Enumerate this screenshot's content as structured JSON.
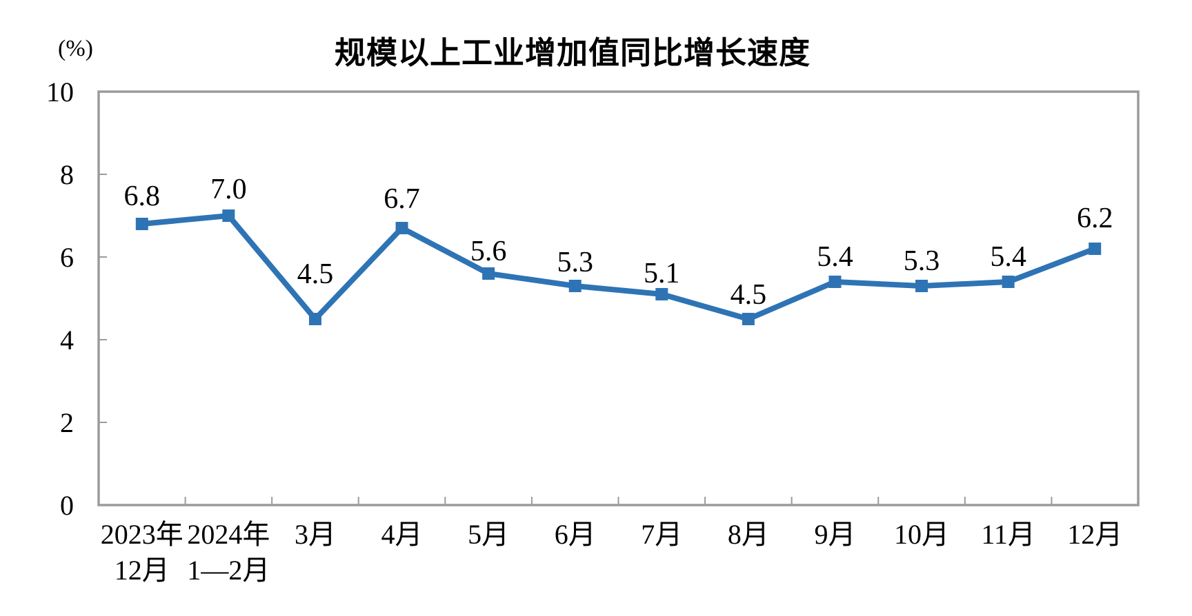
{
  "page": {
    "background_color": "#ffffff"
  },
  "chart_data": {
    "type": "line",
    "title": "规模以上工业增加值同比增长速度",
    "unit_label": "(%)",
    "categories": [
      [
        "2023年",
        "12月"
      ],
      [
        "2024年",
        "1—2月"
      ],
      [
        "3月"
      ],
      [
        "4月"
      ],
      [
        "5月"
      ],
      [
        "6月"
      ],
      [
        "7月"
      ],
      [
        "8月"
      ],
      [
        "9月"
      ],
      [
        "10月"
      ],
      [
        "11月"
      ],
      [
        "12月"
      ]
    ],
    "values": [
      6.8,
      7.0,
      4.5,
      6.7,
      5.6,
      5.3,
      5.1,
      4.5,
      5.4,
      5.3,
      5.4,
      6.2
    ],
    "data_labels": [
      "6.8",
      "7.0",
      "4.5",
      "6.7",
      "5.6",
      "5.3",
      "5.1",
      "4.5",
      "5.4",
      "5.3",
      "5.4",
      "6.2"
    ],
    "xlabel": "",
    "ylabel": "(%)",
    "ylim": [
      0,
      10
    ],
    "yticks": [
      0,
      2,
      4,
      6,
      8,
      10
    ],
    "grid": false,
    "legend": "none",
    "series_name": "规模以上工业增加值同比增长速度",
    "line_color": "#2E74B5",
    "marker_shape": "square",
    "axis_color": "#9B9B9B",
    "text_color": "#000000"
  }
}
